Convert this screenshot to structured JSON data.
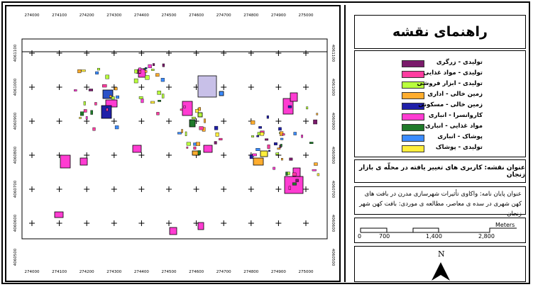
{
  "legend_title": "راهنمای نقشه",
  "legend_items": [
    {
      "label": "تولیدی - زرگری",
      "color": "#7a1b6b"
    },
    {
      "label": "تولیدی - مواد غذایی",
      "color": "#ff3ca0"
    },
    {
      "label": "تولیدی - ابزار فروشی",
      "color": "#b8ff3c"
    },
    {
      "label": "زمین خالی - اداری",
      "color": "#ffad2e"
    },
    {
      "label": "زمین خالی - مسکونی",
      "color": "#2020a8"
    },
    {
      "label": "کاروانسرا - انباری",
      "color": "#ff3cd2"
    },
    {
      "label": "مواد غذایی - انباری",
      "color": "#1f7a2a"
    },
    {
      "label": "پوشاک - انباری",
      "color": "#3c8cff"
    },
    {
      "label": "تولیدی - پوشاک",
      "color": "#ffee3c"
    }
  ],
  "map_title": "عنوان نقشه: کاربری های تغییر یافته در محلّه ی بازار زنجان",
  "thesis_title": "عنوان پایان نامه: واکاوی تأثیرات شهرسازی مدرن در بافت های کهن شهری در سده ی معاصر، مطالعه ی موردی: بافت کهن شهر زنجان",
  "scale": {
    "ticks": [
      "0",
      "700",
      "1,400",
      "2,800"
    ],
    "unit": "Meters"
  },
  "north_label": "N",
  "map": {
    "x_ticks": [
      "274000",
      "274100",
      "274200",
      "274300",
      "274400",
      "274500",
      "274600",
      "274700",
      "274800",
      "274900",
      "275000"
    ],
    "y_ticks_left": [
      "4061100",
      "4061000",
      "4060900",
      "4060800",
      "4060700",
      "4060600",
      "4060500"
    ],
    "y_ticks_right": [
      "4061100",
      "4061000",
      "4060900",
      "4060800",
      "4060700",
      "4060600",
      "4060500"
    ]
  }
}
